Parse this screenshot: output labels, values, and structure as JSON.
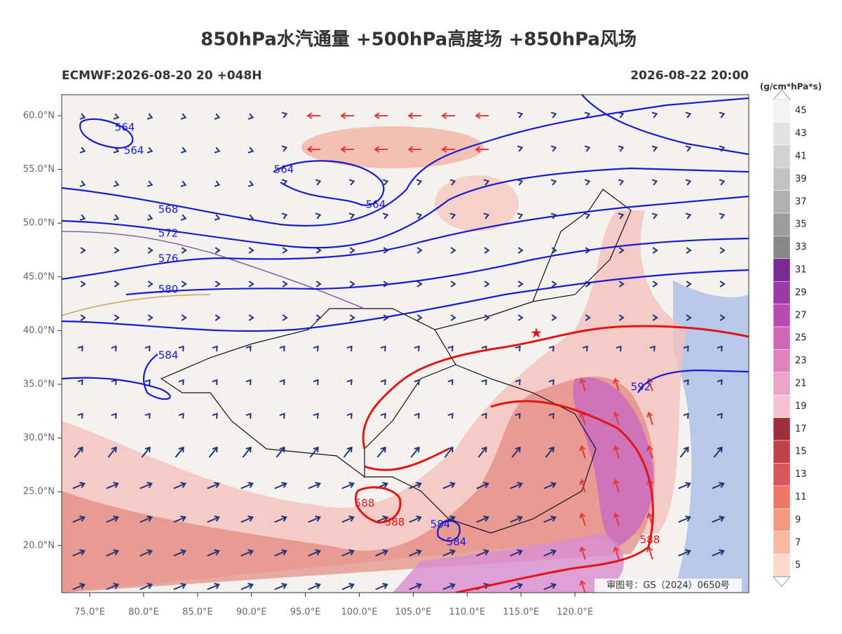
{
  "header": {
    "title": "850hPa水汽通量 +500hPa高度场 +850hPa风场",
    "left": "ECMWF:2026-08-20 20 +048H",
    "right": "2026-08-22 20:00"
  },
  "colorbar": {
    "unit": "(g/cm*hPa*s)",
    "labels": [
      45,
      43,
      41,
      39,
      37,
      35,
      33,
      31,
      29,
      27,
      25,
      23,
      21,
      19,
      17,
      15,
      13,
      11,
      9,
      7,
      5
    ],
    "colors": [
      "#f4f4f4",
      "#e2e2e2",
      "#d2d2d2",
      "#c2c2c2",
      "#b0b0b0",
      "#9c9c9c",
      "#888888",
      "#7a2b8f",
      "#9b3aa3",
      "#b94bae",
      "#d365b5",
      "#e183bd",
      "#eba3c8",
      "#f4c1d2",
      "#9c2f3a",
      "#c04348",
      "#d9575a",
      "#ec7767",
      "#f59a82",
      "#f8b9a3",
      "#fbd9cc"
    ]
  },
  "axes": {
    "lat_labels": [
      "60.0°N",
      "55.0°N",
      "50.0°N",
      "45.0°N",
      "40.0°N",
      "35.0°N",
      "30.0°N",
      "25.0°N",
      "20.0°N"
    ],
    "lon_labels": [
      "75.0°E",
      "80.0°E",
      "85.0°E",
      "90.0°E",
      "95.0°E",
      "100.0°E",
      "105.0°E",
      "110.0°E",
      "115.0°E",
      "120.0°E"
    ]
  },
  "contour_labels": {
    "blue": [
      564,
      564,
      564,
      564,
      568,
      572,
      576,
      580,
      584,
      592,
      584,
      584
    ],
    "red": [
      588,
      588,
      588
    ]
  },
  "notice": "审图号：GS（2024）0650号"
}
